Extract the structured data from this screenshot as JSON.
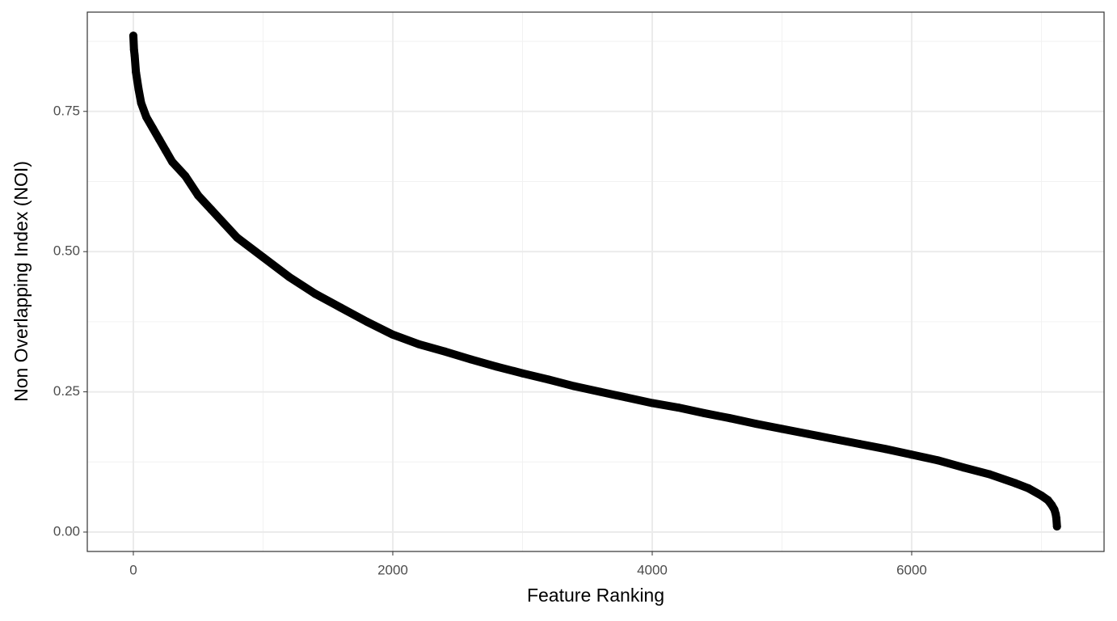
{
  "chart_data": {
    "type": "scatter",
    "x_label": "Feature Ranking",
    "y_label": "Non Overlapping Index (NOI)",
    "color": "#000000",
    "x": [
      0,
      5,
      10,
      20,
      40,
      60,
      100,
      150,
      200,
      250,
      300,
      400,
      500,
      600,
      700,
      800,
      1000,
      1200,
      1400,
      1600,
      1800,
      2000,
      2200,
      2400,
      2600,
      2800,
      3000,
      3200,
      3400,
      3600,
      3800,
      4000,
      4200,
      4400,
      4600,
      4800,
      5000,
      5200,
      5400,
      5600,
      5800,
      6000,
      6200,
      6400,
      6600,
      6800,
      6900,
      7000,
      7050,
      7080,
      7100,
      7110,
      7115,
      7120
    ],
    "y": [
      0.885,
      0.86,
      0.85,
      0.82,
      0.79,
      0.765,
      0.74,
      0.72,
      0.7,
      0.68,
      0.66,
      0.635,
      0.6,
      0.575,
      0.55,
      0.525,
      0.49,
      0.455,
      0.425,
      0.4,
      0.375,
      0.352,
      0.335,
      0.322,
      0.308,
      0.295,
      0.283,
      0.272,
      0.26,
      0.25,
      0.24,
      0.23,
      0.222,
      0.212,
      0.203,
      0.193,
      0.184,
      0.175,
      0.166,
      0.157,
      0.148,
      0.138,
      0.128,
      0.115,
      0.103,
      0.087,
      0.078,
      0.065,
      0.057,
      0.048,
      0.04,
      0.032,
      0.025,
      0.01
    ],
    "xlim": [
      -355,
      7483
    ],
    "ylim": [
      -0.0346,
      0.927
    ],
    "xticks": [
      0,
      2000,
      4000,
      6000
    ],
    "yticks": [
      {
        "value": 0,
        "label": "0.00"
      },
      {
        "value": 0.25,
        "label": "0.25"
      },
      {
        "value": 0.5,
        "label": "0.50"
      },
      {
        "value": 0.75,
        "label": "0.75"
      }
    ],
    "x_minor_grid": [
      1000,
      3000,
      5000,
      7000
    ],
    "y_minor_grid": [
      0.125,
      0.375,
      0.625,
      0.875
    ],
    "grid": true
  }
}
